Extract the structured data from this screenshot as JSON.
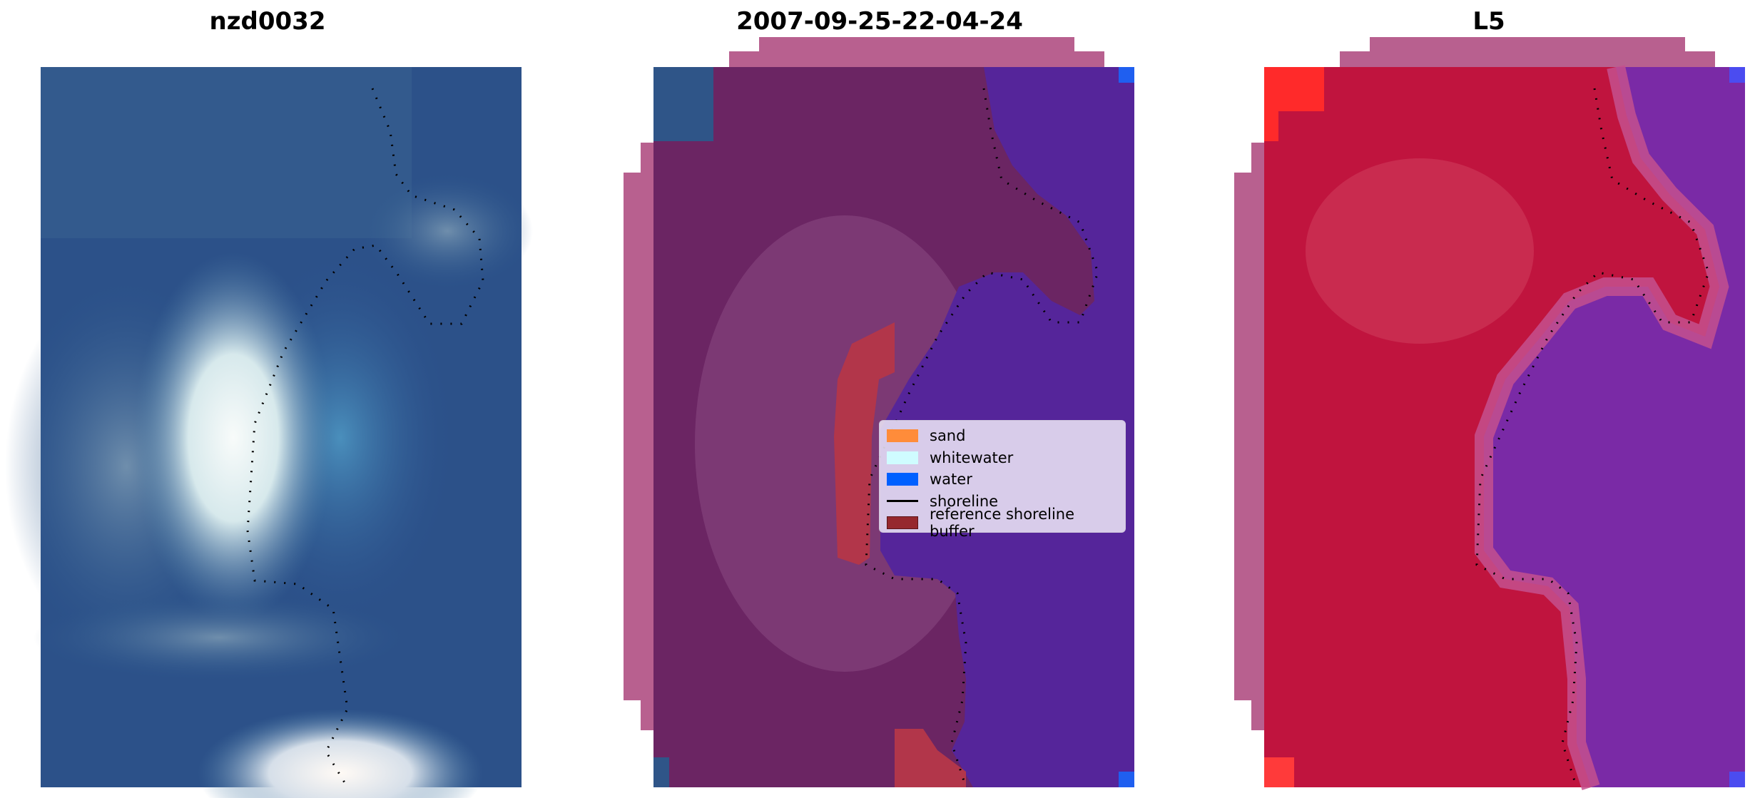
{
  "panels": {
    "rgb": {
      "title": "nzd0032"
    },
    "classified": {
      "title": "2007-09-25-22-04-24"
    },
    "index": {
      "title": "L5"
    }
  },
  "legend": {
    "items": [
      {
        "label": "sand",
        "color": "#ff8c3a",
        "kind": "patch"
      },
      {
        "label": "whitewater",
        "color": "#cffcff",
        "kind": "patch"
      },
      {
        "label": "water",
        "color": "#0060ff",
        "kind": "patch"
      },
      {
        "label": "shoreline",
        "color": "#000000",
        "kind": "line"
      },
      {
        "label": "reference shoreline buffer",
        "color": "#96282e",
        "kind": "patch"
      }
    ]
  },
  "colors": {
    "background": "#ffffff",
    "rgb_water": "#2a4f8c",
    "classified_land": "#6b2563",
    "classified_water": "#55259a",
    "buffer_pink": "#b8608f",
    "index_land": "#c0143e",
    "index_water": "#7a2aa6"
  }
}
